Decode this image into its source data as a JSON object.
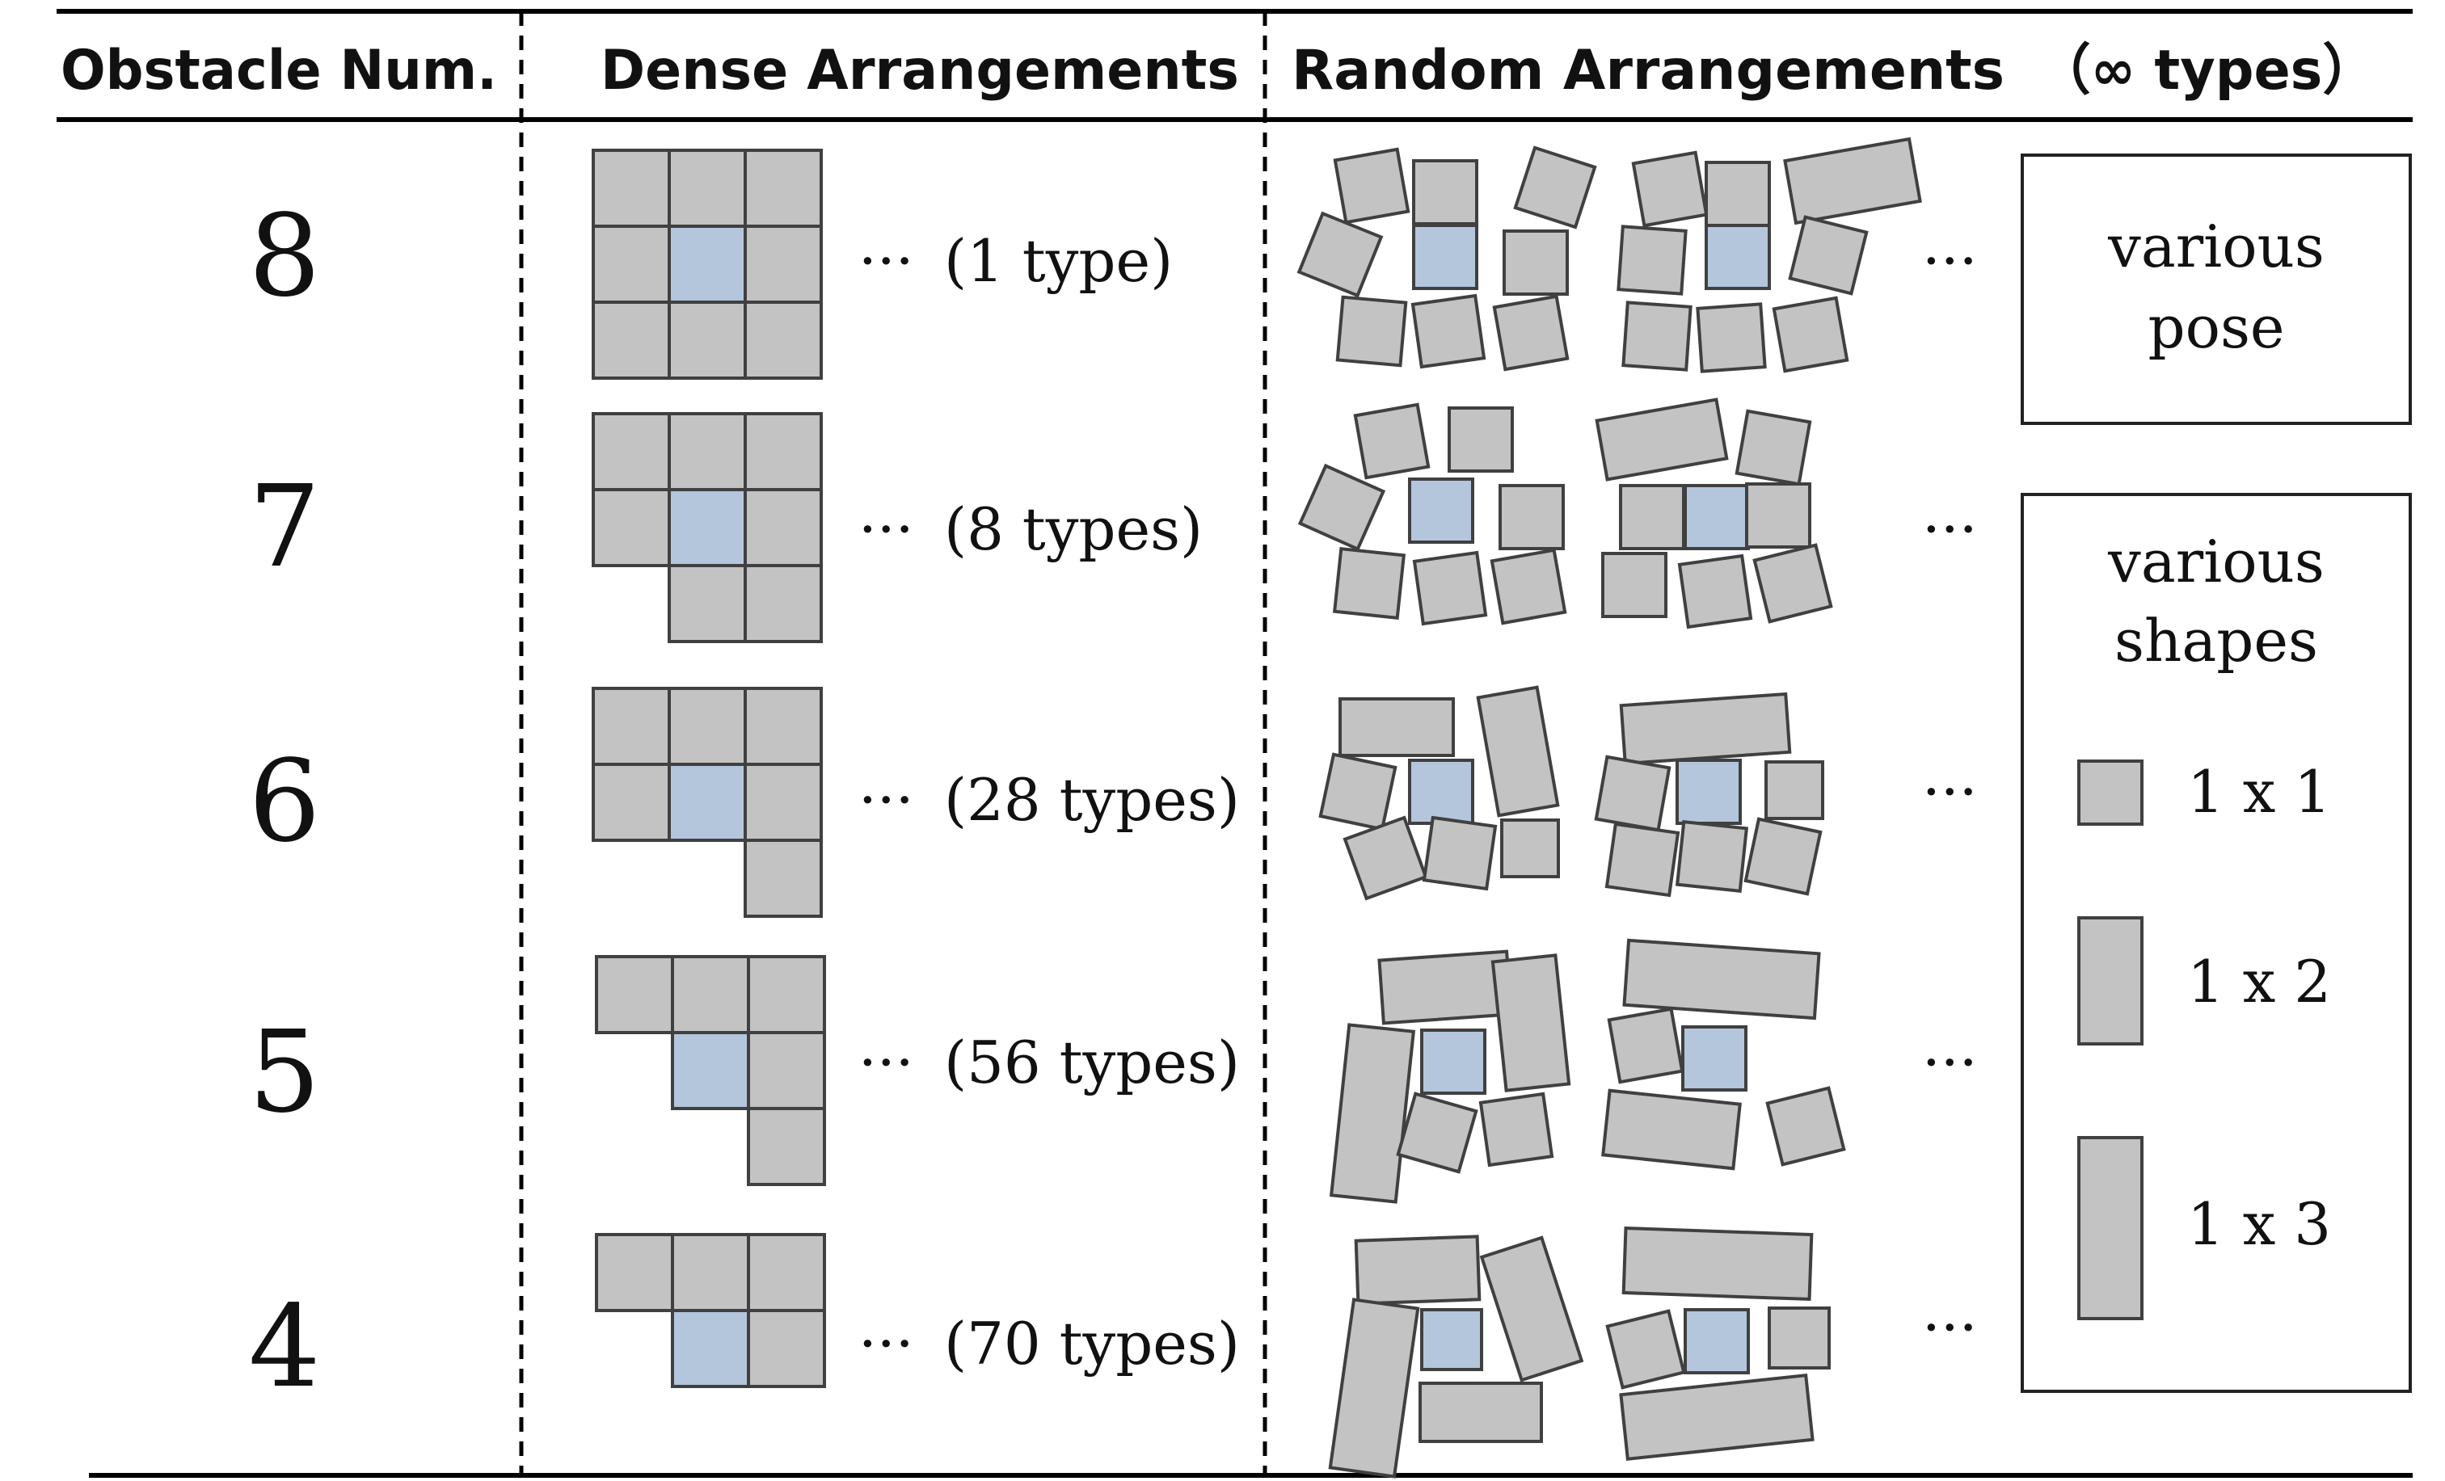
{
  "header": {
    "obstacle_num": "Obstacle Num.",
    "dense": "Dense Arrangements",
    "random": "Random Arrangements",
    "random_types": "（∞ types）"
  },
  "rows": [
    {
      "num": "8",
      "dense_label": "(1 type)",
      "ellipsis": "···",
      "ellipsis_right": "···"
    },
    {
      "num": "7",
      "dense_label": "(8 types)",
      "ellipsis": "···",
      "ellipsis_right": "···"
    },
    {
      "num": "6",
      "dense_label": "(28 types)",
      "ellipsis": "···",
      "ellipsis_right": "···"
    },
    {
      "num": "5",
      "dense_label": "(56 types)",
      "ellipsis": "···",
      "ellipsis_right": "···"
    },
    {
      "num": "4",
      "dense_label": "(70 types)",
      "ellipsis": "···",
      "ellipsis_right": "···"
    }
  ],
  "legend_pose": {
    "line1": "various",
    "line2": "pose"
  },
  "legend_shapes": {
    "line1": "various",
    "line2": "shapes",
    "items": [
      {
        "label": "1 x 1"
      },
      {
        "label": "1 x 2"
      },
      {
        "label": "1 x 3"
      }
    ]
  },
  "colors": {
    "obstacle": "#c3c3c3",
    "target": "#b4c6dc",
    "stroke": "#404040"
  }
}
